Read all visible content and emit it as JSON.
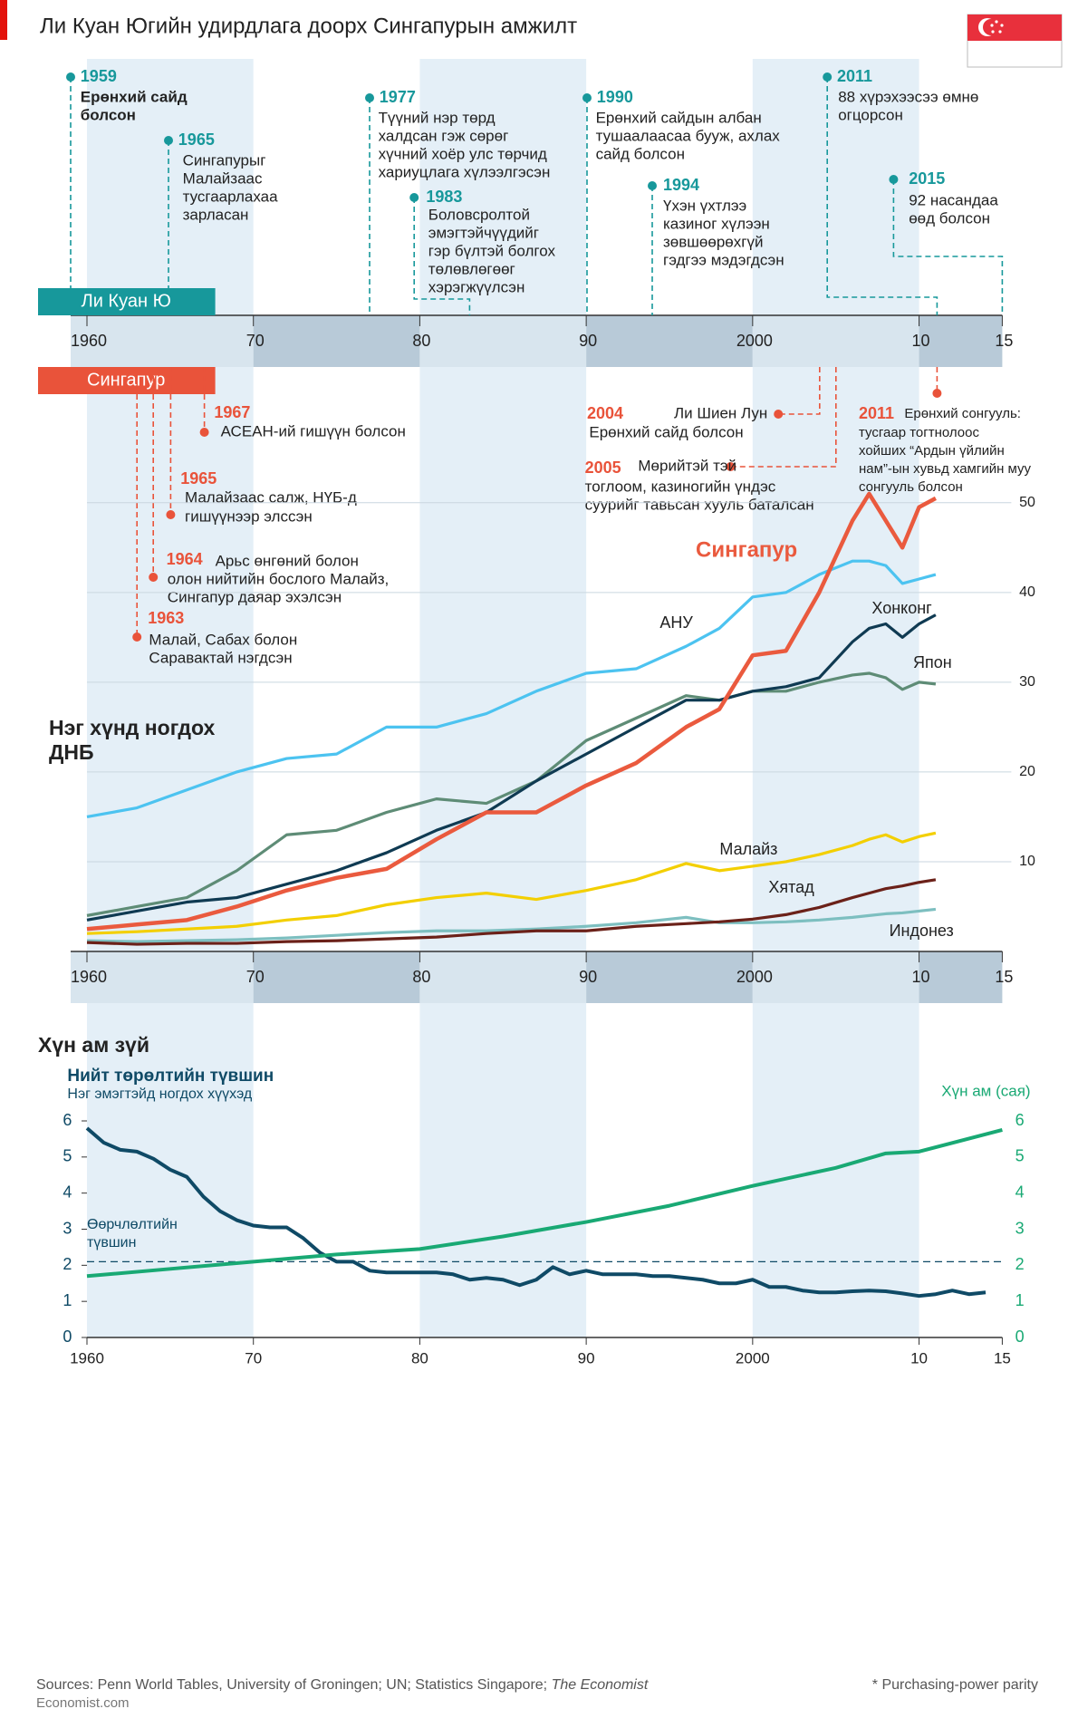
{
  "title": "Ли Куан Югийн удирдлага доорх Сингапурын амжилт",
  "timeline": {
    "xlim": [
      1960,
      2015
    ],
    "xticks": [
      1960,
      {
        "value": 1970,
        "label": "70"
      },
      {
        "value": 1980,
        "label": "80"
      },
      {
        "value": 1990,
        "label": "90"
      },
      2000,
      {
        "value": 2010,
        "label": "10"
      },
      {
        "value": 2015,
        "label": "15"
      }
    ],
    "leader_label": "Ли Куан Ю",
    "country_label": "Сингапур",
    "leader_events": [
      {
        "year": 1959,
        "lines": [
          "Ерөнхий сайд",
          "болсон"
        ]
      },
      {
        "year": 1965,
        "lines": [
          "Сингапурыг",
          "Малайзаас",
          "тусгаарлахаа",
          "зарласан"
        ]
      },
      {
        "year": 1977,
        "lines": [
          "Түүний нэр төрд",
          "халдсан гэж сөрөг",
          "хүчний хоёр улс төрчид",
          "хариуцлага хүлээлгэсэн"
        ]
      },
      {
        "year": 1983,
        "lines": [
          "Боловсролтой",
          "эмэгтэйчүүдийг",
          "гэр бүлтэй болгох",
          "төлөвлөгөөг",
          "хэрэгжүүлсэн"
        ]
      },
      {
        "year": 1990,
        "lines": [
          "Ерөнхий сайдын албан",
          "тушаалаасаа бууж, ахлах",
          "сайд болсон"
        ]
      },
      {
        "year": 1994,
        "lines": [
          "Үхэн үхтлээ",
          "казиног хүлээн",
          "зөвшөөрөхгүй",
          "гэдгээ мэдэгдсэн"
        ]
      },
      {
        "year": 2011,
        "lines": [
          "88 хүрэхээсээ өмнө",
          "огцорсон"
        ]
      },
      {
        "year": 2015,
        "lines": [
          "92 насандаа",
          "өөд болсон"
        ]
      }
    ],
    "country_events": [
      {
        "year": 1967,
        "lines": [
          "АСЕАН-ий гишүүн болсон"
        ]
      },
      {
        "year": 1965,
        "lines": [
          "Малайзаас салж, НҮБ-д",
          "гишүүнээр элссэн"
        ]
      },
      {
        "year": 1964,
        "lines": [
          "Арьс өнгөний болон",
          "олон нийтийн бослого Малайз,",
          "Сингапур даяар эхэлсэн"
        ]
      },
      {
        "year": 1963,
        "lines": [
          "Малай, Сабах болон",
          "Саравактай нэгдсэн"
        ]
      },
      {
        "year": 2004,
        "lines": [
          "Ли Шиен Лун",
          "Ерөнхий сайд болсон"
        ]
      },
      {
        "year": 2005,
        "lines": [
          "Мөрийтэй тэй",
          "тоглоом, казиногийн үндэс",
          "суурийг тавьсан хууль баталсан"
        ]
      },
      {
        "year": 2011,
        "lines": [
          "Ерөнхий сонгууль:",
          "тусгаар тогтнолоос",
          "хойших “Ардын үйлийн",
          "нам”-ын хувьд хамгийн муу",
          "сонгууль болсон"
        ]
      }
    ]
  },
  "chart_data": [
    {
      "type": "line",
      "title": [
        "Нэг хүнд ногдох",
        "ДНБ"
      ],
      "x": [
        1960,
        1963,
        1966,
        1969,
        1972,
        1975,
        1978,
        1981,
        1984,
        1987,
        1990,
        1993,
        1996,
        1998,
        2000,
        2002,
        2004,
        2006,
        2007,
        2008,
        2009,
        2010,
        2011
      ],
      "xlim": [
        1960,
        2015
      ],
      "xticks": [
        1960,
        {
          "value": 1970,
          "label": "70"
        },
        {
          "value": 1980,
          "label": "80"
        },
        {
          "value": 1990,
          "label": "90"
        },
        2000,
        {
          "value": 2010,
          "label": "10"
        },
        {
          "value": 2015,
          "label": "15"
        }
      ],
      "ylim": [
        0,
        52
      ],
      "yticks": [
        10,
        20,
        30,
        40,
        50
      ],
      "grid": true,
      "series": [
        {
          "name": "АНУ",
          "color": "#4cc3f0",
          "values": [
            15,
            16,
            18,
            20,
            21.5,
            22,
            25,
            25,
            26.5,
            29,
            31,
            31.5,
            34,
            36,
            39.5,
            40,
            42,
            43.5,
            43.5,
            43,
            41,
            41.5,
            42
          ]
        },
        {
          "name": "Япон",
          "color": "#5e8c76",
          "values": [
            4,
            5,
            6,
            9,
            13,
            13.5,
            15.5,
            17,
            16.5,
            19,
            23.5,
            26,
            28.5,
            28,
            29,
            29,
            30,
            30.8,
            31,
            30.5,
            29.2,
            30,
            29.8
          ]
        },
        {
          "name": "Хонконг",
          "color": "#0f3a52",
          "values": [
            3.5,
            4.5,
            5.5,
            6,
            7.5,
            9,
            11,
            13.5,
            15.5,
            19,
            22,
            25,
            28,
            28,
            29,
            29.5,
            30.5,
            34.5,
            36,
            36.5,
            35,
            36.5,
            37.5
          ]
        },
        {
          "name": "Малайз",
          "color": "#f3cf00",
          "values": [
            2,
            2.2,
            2.5,
            2.8,
            3.5,
            4,
            5.2,
            6,
            6.5,
            5.8,
            6.8,
            8,
            9.8,
            9,
            9.5,
            10,
            10.8,
            11.8,
            12.5,
            13,
            12.2,
            12.8,
            13.2
          ]
        },
        {
          "name": "Индонез",
          "color": "#7dbfc0",
          "values": [
            1.2,
            1.1,
            1.2,
            1.3,
            1.5,
            1.8,
            2.1,
            2.3,
            2.3,
            2.5,
            2.8,
            3.2,
            3.8,
            3.2,
            3.2,
            3.3,
            3.5,
            3.8,
            4,
            4.2,
            4.3,
            4.5,
            4.7
          ]
        },
        {
          "name": "Хятад",
          "color": "#6b2119",
          "values": [
            1,
            0.8,
            0.9,
            0.9,
            1.1,
            1.2,
            1.4,
            1.6,
            2,
            2.3,
            2.3,
            2.8,
            3.1,
            3.3,
            3.6,
            4.1,
            4.9,
            6,
            6.5,
            7,
            7.3,
            7.7,
            8
          ]
        },
        {
          "name": "Сингапур",
          "color": "#ea5a3e",
          "values": [
            2.5,
            3,
            3.5,
            5,
            6.8,
            8.2,
            9.2,
            12.5,
            15.5,
            15.5,
            18.5,
            21,
            25,
            27,
            33,
            33.5,
            40,
            48,
            51,
            48,
            45,
            49.5,
            50.5
          ]
        }
      ]
    },
    {
      "type": "line",
      "title": "Хүн ам зүй",
      "xlim": [
        1960,
        2015
      ],
      "xticks": [
        1960,
        {
          "value": 1970,
          "label": "70"
        },
        {
          "value": 1980,
          "label": "80"
        },
        {
          "value": 1990,
          "label": "90"
        },
        2000,
        {
          "value": 2010,
          "label": "10"
        },
        {
          "value": 2015,
          "label": "15"
        }
      ],
      "ylim": [
        0,
        6
      ],
      "yticks": [
        0,
        1,
        2,
        3,
        4,
        5,
        6
      ],
      "y2lim": [
        0,
        6
      ],
      "y2ticks": [
        0,
        1,
        2,
        3,
        4,
        5,
        6
      ],
      "reference": {
        "value": 2.1,
        "label": [
          "Өөрчлөлтийн",
          "түвшин"
        ]
      },
      "series": [
        {
          "name": "Нийт төрөлтийн түвшин",
          "subtitle": "Нэг эмэгтэйд ногдох хүүхэд",
          "color": "#0f4a66",
          "x": [
            1960,
            1961,
            1962,
            1963,
            1964,
            1965,
            1966,
            1967,
            1968,
            1969,
            1970,
            1971,
            1972,
            1973,
            1974,
            1975,
            1976,
            1977,
            1978,
            1979,
            1980,
            1981,
            1982,
            1983,
            1984,
            1985,
            1986,
            1987,
            1988,
            1989,
            1990,
            1991,
            1992,
            1993,
            1994,
            1995,
            1996,
            1997,
            1998,
            1999,
            2000,
            2001,
            2002,
            2003,
            2004,
            2005,
            2006,
            2007,
            2008,
            2009,
            2010,
            2011,
            2012,
            2013,
            2014
          ],
          "values": [
            5.8,
            5.4,
            5.2,
            5.15,
            4.95,
            4.65,
            4.45,
            3.9,
            3.5,
            3.25,
            3.1,
            3.05,
            3.05,
            2.75,
            2.35,
            2.1,
            2.1,
            1.85,
            1.8,
            1.8,
            1.8,
            1.8,
            1.75,
            1.6,
            1.65,
            1.6,
            1.45,
            1.6,
            1.95,
            1.75,
            1.85,
            1.75,
            1.75,
            1.75,
            1.7,
            1.7,
            1.65,
            1.6,
            1.5,
            1.5,
            1.6,
            1.4,
            1.4,
            1.3,
            1.25,
            1.25,
            1.28,
            1.3,
            1.28,
            1.22,
            1.15,
            1.2,
            1.3,
            1.2,
            1.25
          ]
        },
        {
          "name": "Хүн ам (сая)",
          "color": "#19a974",
          "axis": "y2",
          "x": [
            1960,
            1965,
            1970,
            1975,
            1980,
            1985,
            1990,
            1995,
            2000,
            2005,
            2008,
            2010,
            2015
          ],
          "values": [
            1.7,
            1.9,
            2.1,
            2.3,
            2.45,
            2.8,
            3.2,
            3.65,
            4.2,
            4.7,
            5.1,
            5.15,
            5.75
          ]
        }
      ]
    }
  ],
  "sources": [
    "Sources: Penn World Tables, University of Groningen; UN; Statistics Singapore; ",
    "The Economist"
  ],
  "footnote": "* Purchasing-power parity",
  "brand": "Economist.com"
}
